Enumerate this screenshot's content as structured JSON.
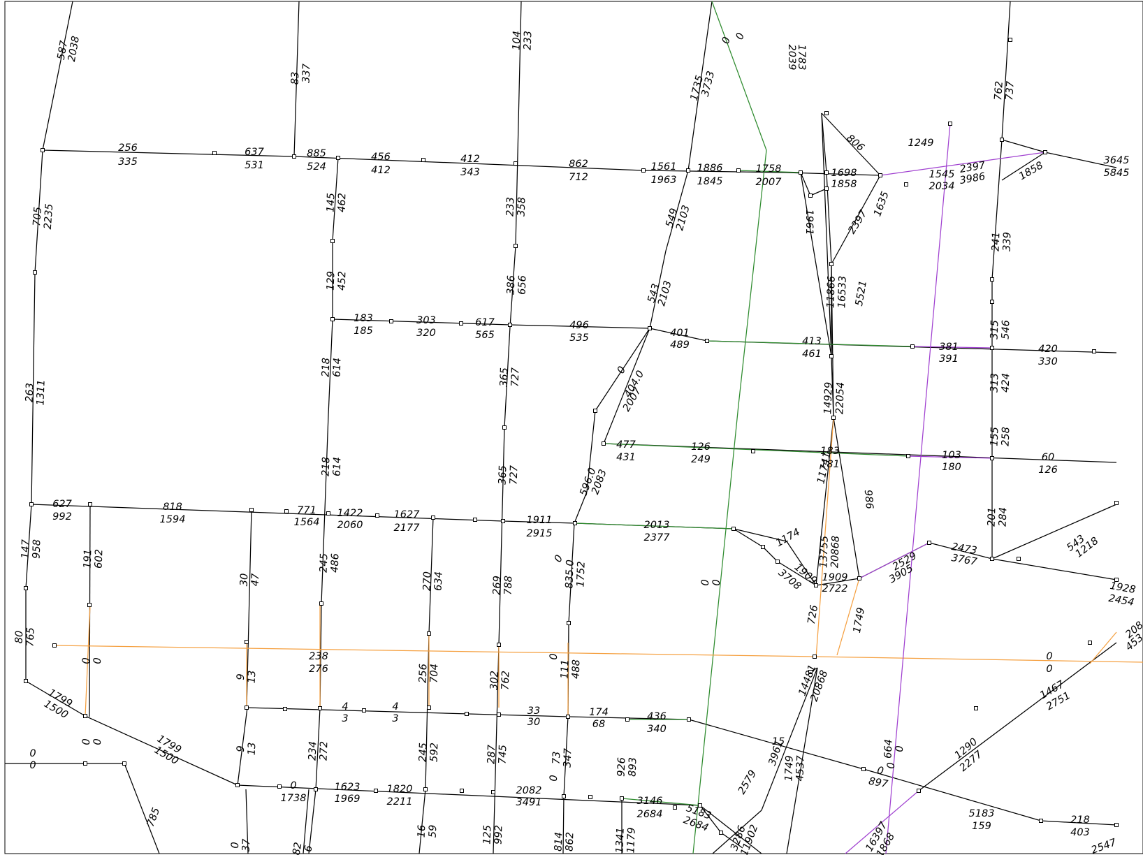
{
  "map": {
    "line_colors": {
      "base": "#000000",
      "green": "#2e8b2e",
      "orange": "#f5a040",
      "purple": "#a040d0"
    }
  },
  "labels": [
    "587",
    "2038",
    "83",
    "337",
    "104",
    "233",
    "0",
    "0",
    "1735",
    "3733",
    "1783",
    "2039",
    "762",
    "737",
    "256",
    "335",
    "637",
    "531",
    "885",
    "524",
    "456",
    "412",
    "412",
    "343",
    "862",
    "712",
    "1561",
    "1963",
    "1886",
    "1845",
    "1758",
    "2007",
    "1698",
    "1858",
    "806",
    "1249",
    "1545",
    "2034",
    "2397",
    "3986",
    "1858",
    "3645",
    "5845",
    "705",
    "2235",
    "145",
    "462",
    "233",
    "358",
    "549",
    "2103",
    "1961",
    "2397",
    "1635",
    "241",
    "339",
    "129",
    "452",
    "386",
    "656",
    "543",
    "2103",
    "11866",
    "16533",
    "5521",
    "183",
    "185",
    "303",
    "320",
    "617",
    "565",
    "496",
    "535",
    "401",
    "489",
    "413",
    "461",
    "381",
    "391",
    "315",
    "546",
    "420",
    "330",
    "263",
    "1311",
    "218",
    "614",
    "365",
    "727",
    "0",
    "404.0",
    "2007",
    "14929",
    "22054",
    "313",
    "424",
    "155",
    "258",
    "477",
    "431",
    "126",
    "249",
    "183",
    "181",
    "103",
    "180",
    "60",
    "126",
    "218",
    "614",
    "365",
    "727",
    "596.0",
    "2083",
    "11741",
    "986",
    "627",
    "992",
    "818",
    "1594",
    "771",
    "1564",
    "1422",
    "2060",
    "1627",
    "2177",
    "1911",
    "2915",
    "2013",
    "2377",
    "1174",
    "13755",
    "20868",
    "201",
    "284",
    "543",
    "1218",
    "2473",
    "3767",
    "147",
    "958",
    "191",
    "602",
    "30",
    "47",
    "245",
    "486",
    "270",
    "634",
    "269",
    "788",
    "0",
    "835.0",
    "1752",
    "0",
    "0",
    "1909",
    "3708",
    "1909",
    "2722",
    "2529",
    "3905",
    "1928",
    "2454",
    "726",
    "1749",
    "80",
    "765",
    "0",
    "0",
    "9",
    "13",
    "238",
    "276",
    "256",
    "704",
    "302",
    "762",
    "0",
    "111",
    "488",
    "0",
    "0",
    "208",
    "453",
    "4",
    "3",
    "4",
    "3",
    "33",
    "30",
    "174",
    "68",
    "436",
    "340",
    "14481",
    "20868",
    "1467",
    "2751",
    "1799",
    "1500",
    "0",
    "0",
    "1799",
    "1500",
    "9",
    "13",
    "234",
    "272",
    "245",
    "592",
    "287",
    "745",
    "73",
    "347",
    "0",
    "926",
    "893",
    "0",
    "0",
    "1290",
    "2277",
    "15",
    "3961",
    "2579",
    "1749",
    "4537",
    "0",
    "0",
    "897",
    "664",
    "0",
    "0",
    "1738",
    "1623",
    "1969",
    "1820",
    "2211",
    "2082",
    "3491",
    "3146",
    "2684",
    "5183",
    "2684",
    "5183",
    "159",
    "218",
    "403",
    "785",
    "0",
    "37",
    "82",
    "6",
    "16",
    "59",
    "125",
    "992",
    "814",
    "862",
    "1341",
    "1179",
    "3286",
    "11902",
    "16397",
    "1868",
    "2547",
    "3"
  ]
}
